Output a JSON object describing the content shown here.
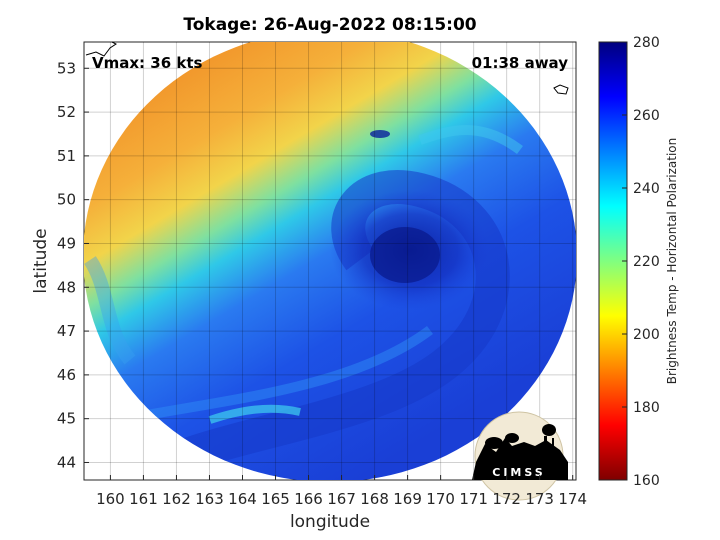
{
  "title": "Tokage: 26-Aug-2022 08:15:00",
  "vmax_label": "Vmax: 36 kts",
  "time_away": "01:38 away",
  "xlabel": "longitude",
  "ylabel": "latitude",
  "x_ticks": [
    "160",
    "161",
    "162",
    "163",
    "164",
    "165",
    "166",
    "167",
    "168",
    "169",
    "170",
    "171",
    "172",
    "173",
    "174"
  ],
  "y_ticks": [
    "44",
    "45",
    "46",
    "47",
    "48",
    "49",
    "50",
    "51",
    "52",
    "53"
  ],
  "colorbar": {
    "label": "Brightness Temp - Horizontal Polarization",
    "ticks": [
      "160",
      "180",
      "200",
      "220",
      "240",
      "260",
      "280"
    ],
    "range": [
      160,
      280
    ]
  },
  "logo_text": "CIMSS",
  "map": {
    "lon_range": [
      159.2,
      174.1
    ],
    "lat_range": [
      43.6,
      53.6
    ],
    "center": [
      169.0,
      48.8
    ],
    "colors": {
      "warm": "#f29a2a",
      "cold": "#1a3fd6",
      "coldest": "#0a1f9e"
    }
  }
}
